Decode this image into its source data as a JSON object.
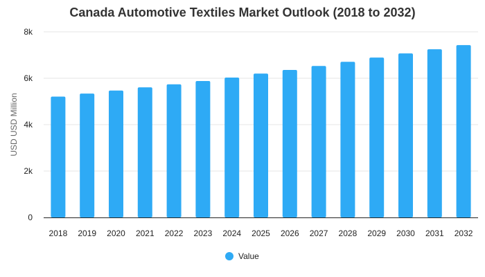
{
  "chart_data": {
    "type": "bar",
    "title": "Canada Automotive Textiles Market Outlook (2018 to 2032)",
    "xlabel": "",
    "ylabel": "USD USD Million",
    "categories": [
      "2018",
      "2019",
      "2020",
      "2021",
      "2022",
      "2023",
      "2024",
      "2025",
      "2026",
      "2027",
      "2028",
      "2029",
      "2030",
      "2031",
      "2032"
    ],
    "series": [
      {
        "name": "Value",
        "values": [
          5210,
          5340,
          5470,
          5610,
          5740,
          5880,
          6030,
          6200,
          6360,
          6530,
          6710,
          6890,
          7070,
          7250,
          7430
        ],
        "color": "#2eaaf5"
      }
    ],
    "ylim": [
      0,
      8000
    ],
    "yticks": [
      {
        "value": 0,
        "label": "0"
      },
      {
        "value": 2000,
        "label": "2k"
      },
      {
        "value": 4000,
        "label": "4k"
      },
      {
        "value": 6000,
        "label": "6k"
      },
      {
        "value": 8000,
        "label": "8k"
      }
    ],
    "grid": true,
    "legend_position": "bottom"
  }
}
